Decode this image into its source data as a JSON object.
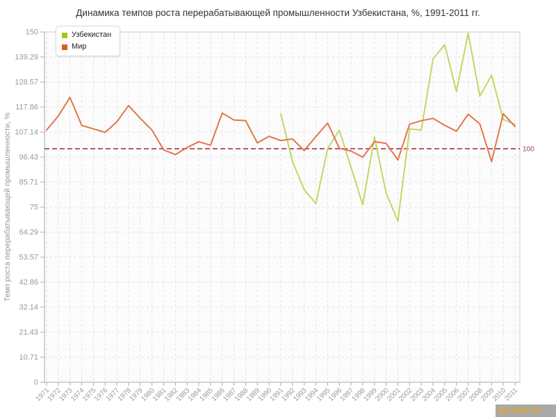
{
  "title": "Динамика темпов роста перерабатывающей промышленности Узбекистана, %, 1991-2011 гг.",
  "watermark": "http://be5.biz/",
  "legend": {
    "position": "top-left"
  },
  "chart_data": {
    "type": "line",
    "title": "Динамика темпов роста перерабатывающей промышленности Узбекистана, %, 1991-2011 гг.",
    "xlabel": "",
    "ylabel": "Темп роста перерабатывающей промышленности, %",
    "ylim": [
      0,
      150
    ],
    "grid": true,
    "legend_position": "top-left",
    "y_tick_labels": [
      "0",
      "10.71",
      "21.43",
      "32.14",
      "42.86",
      "53.57",
      "64.29",
      "75",
      "85.71",
      "96.43",
      "107.14",
      "117.86",
      "128.57",
      "139.29",
      "150"
    ],
    "categories": [
      "1971",
      "1972",
      "1973",
      "1974",
      "1975",
      "1976",
      "1977",
      "1978",
      "1979",
      "1980",
      "1981",
      "1982",
      "1983",
      "1984",
      "1985",
      "1986",
      "1987",
      "1988",
      "1989",
      "1990",
      "1991",
      "1992",
      "1993",
      "1994",
      "1995",
      "1996",
      "1997",
      "1998",
      "1999",
      "2000",
      "2001",
      "2002",
      "2003",
      "2004",
      "2005",
      "2006",
      "2007",
      "2008",
      "2009",
      "2010",
      "2011"
    ],
    "guide_line": {
      "value": 100,
      "label": "100",
      "color": "#b05a72",
      "label_color": "#9c4050"
    },
    "series": [
      {
        "name": "Узбекистан",
        "first_year": "1991",
        "line_color": "#c1d763",
        "legend_color": "#a6c715",
        "values": [
          115,
          94.5,
          82.5,
          76.5,
          100,
          108,
          92,
          76,
          105,
          81,
          69,
          108.5,
          108,
          138.5,
          144.5,
          124.5,
          149.5,
          122.5,
          131.5,
          112.5,
          110.5
        ]
      },
      {
        "name": "Мир",
        "first_year": "1971",
        "line_color": "#e4744a",
        "legend_color": "#df5b1e",
        "values": [
          108,
          114,
          122,
          110,
          108.5,
          107,
          111.5,
          118.5,
          113,
          108,
          99.5,
          97.5,
          100.5,
          103,
          101.5,
          115.3,
          112.3,
          112,
          102.5,
          105.3,
          103.5,
          104.2,
          99.2,
          105.2,
          111,
          100.2,
          99,
          96.4,
          103,
          102.3,
          95.2,
          110.5,
          112,
          113,
          110,
          107.5,
          114.8,
          110.6,
          94.5,
          115,
          109.5
        ]
      }
    ]
  }
}
